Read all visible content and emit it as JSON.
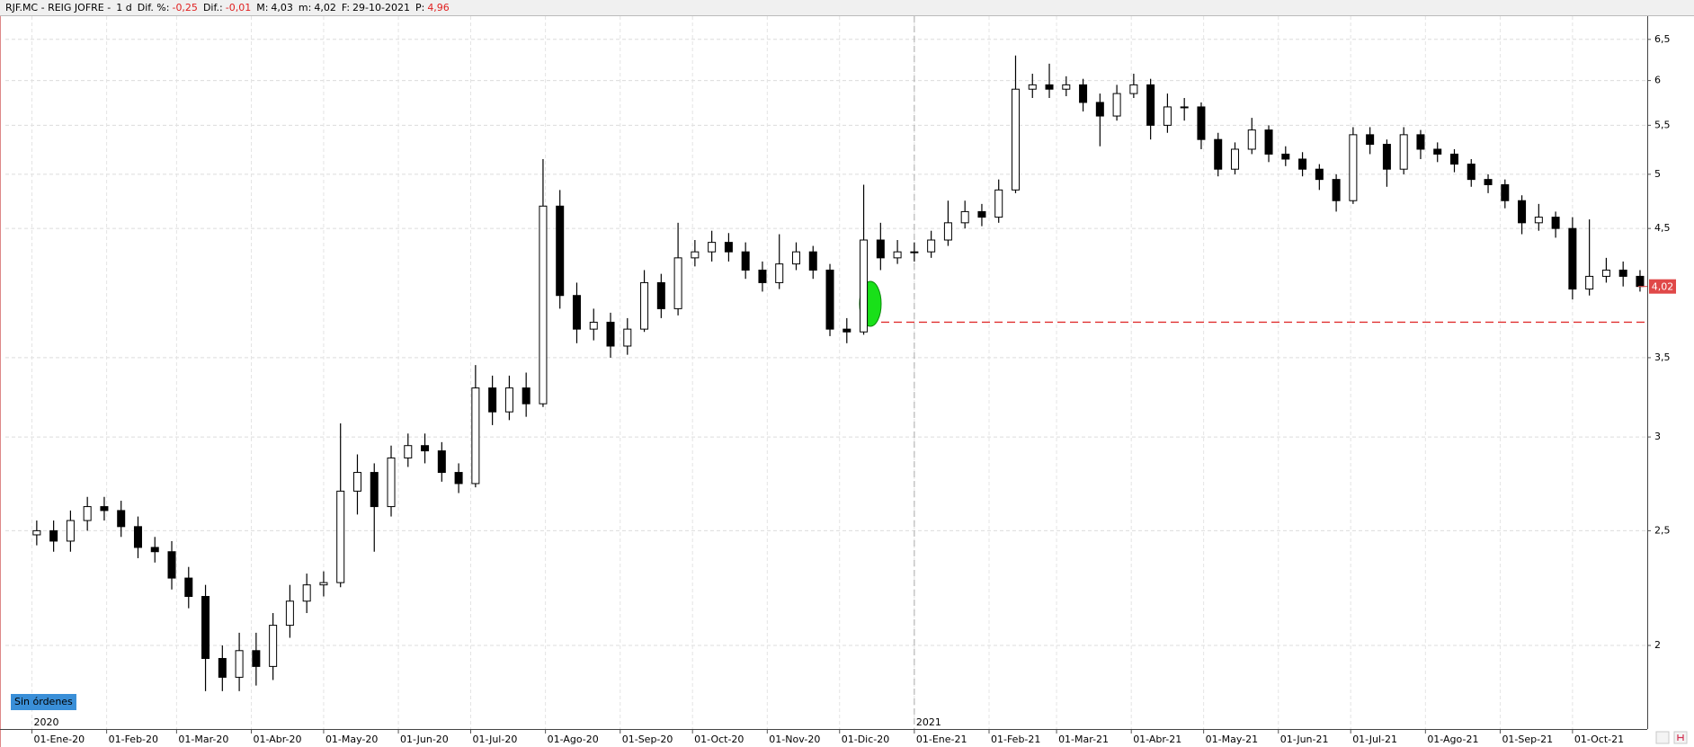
{
  "chart_data": {
    "type": "candlestick",
    "header": {
      "symbol": "RJF.MC - REIG JOFRE -",
      "period": "1 d",
      "fields": [
        {
          "label": "Dif. %:",
          "value": "-0,25",
          "negative": true
        },
        {
          "label": "Dif.:",
          "value": "-0,01",
          "negative": true
        },
        {
          "label": "M:",
          "value": "4,03",
          "negative": false
        },
        {
          "label": "m:",
          "value": "4,02",
          "negative": false
        },
        {
          "label": "F:",
          "value": "29-10-2021",
          "negative": false
        },
        {
          "label": "P:",
          "value": "4,96",
          "negative": true
        }
      ]
    },
    "badge": "Sin órdenes",
    "x": [
      "2020-01-03",
      "2020-01-10",
      "2020-01-17",
      "2020-01-24",
      "2020-01-31",
      "2020-02-07",
      "2020-02-14",
      "2020-02-21",
      "2020-02-28",
      "2020-03-06",
      "2020-03-13",
      "2020-03-20",
      "2020-03-27",
      "2020-04-03",
      "2020-04-10",
      "2020-04-17",
      "2020-04-24",
      "2020-05-01",
      "2020-05-08",
      "2020-05-15",
      "2020-05-22",
      "2020-05-29",
      "2020-06-05",
      "2020-06-12",
      "2020-06-19",
      "2020-06-26",
      "2020-07-03",
      "2020-07-10",
      "2020-07-17",
      "2020-07-24",
      "2020-07-31",
      "2020-08-07",
      "2020-08-14",
      "2020-08-21",
      "2020-08-28",
      "2020-09-04",
      "2020-09-11",
      "2020-09-18",
      "2020-09-25",
      "2020-10-02",
      "2020-10-09",
      "2020-10-16",
      "2020-10-23",
      "2020-10-30",
      "2020-11-06",
      "2020-11-13",
      "2020-11-20",
      "2020-11-27",
      "2020-12-04",
      "2020-12-11",
      "2020-12-18",
      "2020-12-25",
      "2021-01-01",
      "2021-01-08",
      "2021-01-15",
      "2021-01-22",
      "2021-01-29",
      "2021-02-05",
      "2021-02-12",
      "2021-02-19",
      "2021-02-26",
      "2021-03-05",
      "2021-03-12",
      "2021-03-19",
      "2021-03-26",
      "2021-04-02",
      "2021-04-09",
      "2021-04-16",
      "2021-04-23",
      "2021-04-30",
      "2021-05-07",
      "2021-05-14",
      "2021-05-21",
      "2021-05-28",
      "2021-06-04",
      "2021-06-11",
      "2021-06-18",
      "2021-06-25",
      "2021-07-02",
      "2021-07-09",
      "2021-07-16",
      "2021-07-23",
      "2021-07-30",
      "2021-08-06",
      "2021-08-13",
      "2021-08-20",
      "2021-08-27",
      "2021-09-03",
      "2021-09-10",
      "2021-09-17",
      "2021-09-24",
      "2021-10-01",
      "2021-10-08",
      "2021-10-15",
      "2021-10-22",
      "2021-10-29"
    ],
    "open": [
      2.48,
      2.5,
      2.45,
      2.55,
      2.62,
      2.6,
      2.52,
      2.42,
      2.4,
      2.28,
      2.2,
      1.95,
      1.88,
      1.98,
      1.92,
      2.08,
      2.18,
      2.25,
      2.26,
      2.7,
      2.8,
      2.62,
      2.88,
      2.95,
      2.92,
      2.8,
      2.74,
      3.3,
      3.15,
      3.3,
      3.2,
      4.7,
      3.95,
      3.7,
      3.75,
      3.58,
      3.7,
      4.05,
      3.85,
      4.25,
      4.3,
      4.38,
      4.3,
      4.15,
      4.05,
      4.2,
      4.3,
      4.15,
      3.7,
      3.68,
      4.4,
      4.25,
      4.3,
      4.3,
      4.4,
      4.55,
      4.65,
      4.6,
      4.85,
      5.9,
      5.95,
      5.9,
      5.95,
      5.75,
      5.6,
      5.85,
      5.95,
      5.5,
      5.7,
      5.7,
      5.35,
      5.05,
      5.25,
      5.45,
      5.2,
      5.15,
      5.05,
      4.95,
      4.75,
      5.4,
      5.3,
      5.05,
      5.4,
      5.25,
      5.2,
      5.1,
      4.95,
      4.9,
      4.75,
      4.55,
      4.6,
      4.5,
      4.0,
      4.1,
      4.15,
      4.1
    ],
    "high": [
      2.55,
      2.55,
      2.6,
      2.67,
      2.67,
      2.65,
      2.57,
      2.47,
      2.45,
      2.33,
      2.25,
      2.0,
      2.05,
      2.05,
      2.13,
      2.25,
      2.3,
      2.31,
      3.08,
      2.9,
      2.85,
      2.95,
      3.02,
      3.02,
      2.97,
      2.85,
      3.45,
      3.38,
      3.38,
      3.4,
      5.15,
      4.85,
      4.05,
      3.85,
      3.82,
      3.78,
      4.15,
      4.12,
      4.55,
      4.4,
      4.48,
      4.46,
      4.38,
      4.22,
      4.45,
      4.38,
      4.35,
      4.2,
      3.78,
      4.9,
      4.55,
      4.4,
      4.38,
      4.48,
      4.75,
      4.75,
      4.72,
      4.95,
      6.3,
      6.08,
      6.2,
      6.05,
      6.02,
      5.85,
      5.95,
      6.08,
      6.02,
      5.85,
      5.8,
      5.75,
      5.42,
      5.32,
      5.58,
      5.5,
      5.28,
      5.22,
      5.1,
      5.0,
      5.48,
      5.48,
      5.35,
      5.48,
      5.45,
      5.32,
      5.25,
      5.15,
      5.0,
      4.95,
      4.8,
      4.72,
      4.65,
      4.6,
      4.58,
      4.25,
      4.22,
      4.15
    ],
    "low": [
      2.43,
      2.4,
      2.4,
      2.5,
      2.55,
      2.47,
      2.37,
      2.35,
      2.23,
      2.15,
      1.83,
      1.83,
      1.83,
      1.85,
      1.87,
      2.03,
      2.13,
      2.2,
      2.24,
      2.58,
      2.4,
      2.57,
      2.83,
      2.85,
      2.75,
      2.69,
      2.72,
      3.07,
      3.1,
      3.12,
      3.18,
      3.85,
      3.6,
      3.62,
      3.5,
      3.52,
      3.68,
      3.78,
      3.8,
      4.18,
      4.22,
      4.22,
      4.08,
      3.98,
      4.0,
      4.15,
      4.08,
      3.65,
      3.6,
      3.66,
      4.15,
      4.2,
      4.22,
      4.25,
      4.35,
      4.5,
      4.52,
      4.55,
      4.82,
      5.8,
      5.8,
      5.82,
      5.65,
      5.28,
      5.55,
      5.8,
      5.35,
      5.42,
      5.55,
      5.25,
      4.98,
      5.0,
      5.2,
      5.12,
      5.08,
      4.98,
      4.85,
      4.65,
      4.72,
      5.2,
      4.88,
      5.0,
      5.15,
      5.12,
      5.02,
      4.88,
      4.82,
      4.68,
      4.45,
      4.48,
      4.42,
      3.92,
      3.95,
      4.05,
      4.02,
      3.98
    ],
    "close": [
      2.5,
      2.45,
      2.55,
      2.62,
      2.6,
      2.52,
      2.42,
      2.4,
      2.28,
      2.2,
      1.95,
      1.88,
      1.98,
      1.92,
      2.08,
      2.18,
      2.25,
      2.26,
      2.7,
      2.8,
      2.62,
      2.88,
      2.95,
      2.92,
      2.8,
      2.74,
      3.3,
      3.15,
      3.3,
      3.2,
      4.7,
      3.95,
      3.7,
      3.75,
      3.58,
      3.7,
      4.05,
      3.85,
      4.25,
      4.3,
      4.38,
      4.3,
      4.15,
      4.05,
      4.2,
      4.3,
      4.15,
      3.7,
      3.68,
      4.4,
      4.25,
      4.3,
      4.3,
      4.4,
      4.55,
      4.65,
      4.6,
      4.85,
      5.9,
      5.95,
      5.9,
      5.95,
      5.75,
      5.6,
      5.85,
      5.95,
      5.5,
      5.7,
      5.7,
      5.35,
      5.05,
      5.25,
      5.45,
      5.2,
      5.15,
      5.05,
      4.95,
      4.75,
      5.4,
      5.3,
      5.05,
      5.4,
      5.25,
      5.2,
      5.1,
      4.95,
      4.9,
      4.75,
      4.55,
      4.6,
      4.5,
      4.0,
      4.1,
      4.15,
      4.1,
      4.02
    ],
    "xlim": [
      "2019-12-21",
      "2021-11-01"
    ],
    "xticks": [
      {
        "value": "2020-01-01",
        "label": "01-Ene-20"
      },
      {
        "value": "2020-02-01",
        "label": "01-Feb-20"
      },
      {
        "value": "2020-03-01",
        "label": "01-Mar-20"
      },
      {
        "value": "2020-04-01",
        "label": "01-Abr-20"
      },
      {
        "value": "2020-05-01",
        "label": "01-May-20"
      },
      {
        "value": "2020-06-01",
        "label": "01-Jun-20"
      },
      {
        "value": "2020-07-01",
        "label": "01-Jul-20"
      },
      {
        "value": "2020-08-01",
        "label": "01-Ago-20"
      },
      {
        "value": "2020-09-01",
        "label": "01-Sep-20"
      },
      {
        "value": "2020-10-01",
        "label": "01-Oct-20"
      },
      {
        "value": "2020-11-01",
        "label": "01-Nov-20"
      },
      {
        "value": "2020-12-01",
        "label": "01-Dic-20"
      },
      {
        "value": "2021-01-01",
        "label": "01-Ene-21"
      },
      {
        "value": "2021-02-01",
        "label": "01-Feb-21"
      },
      {
        "value": "2021-03-01",
        "label": "01-Mar-21"
      },
      {
        "value": "2021-04-01",
        "label": "01-Abr-21"
      },
      {
        "value": "2021-05-01",
        "label": "01-May-21"
      },
      {
        "value": "2021-06-01",
        "label": "01-Jun-21"
      },
      {
        "value": "2021-07-01",
        "label": "01-Jul-21"
      },
      {
        "value": "2021-08-01",
        "label": "01-Ago-21"
      },
      {
        "value": "2021-09-01",
        "label": "01-Sep-21"
      },
      {
        "value": "2021-10-01",
        "label": "01-Oct-21"
      }
    ],
    "year_ticks": [
      {
        "value": "2020-01-01",
        "label": "2020"
      },
      {
        "value": "2021-01-01",
        "label": "2021"
      }
    ],
    "ylim": [
      1.7,
      6.8
    ],
    "log_y": true,
    "yticks": [
      2,
      {
        "value": 2.5,
        "label": "2,5"
      },
      3,
      {
        "value": 3.5,
        "label": "3,5"
      },
      {
        "value": 4.5,
        "label": "4,5"
      },
      5,
      {
        "value": 5.5,
        "label": "5,5"
      },
      6,
      {
        "value": 6.5,
        "label": "6,5"
      }
    ],
    "grid": true,
    "hline": {
      "value": 3.75,
      "color": "#e03030"
    },
    "last_price": {
      "value": 4.02,
      "label": "4,02",
      "color": "#e04848"
    },
    "up_color": "#ffffff",
    "down_color": "#000000"
  }
}
